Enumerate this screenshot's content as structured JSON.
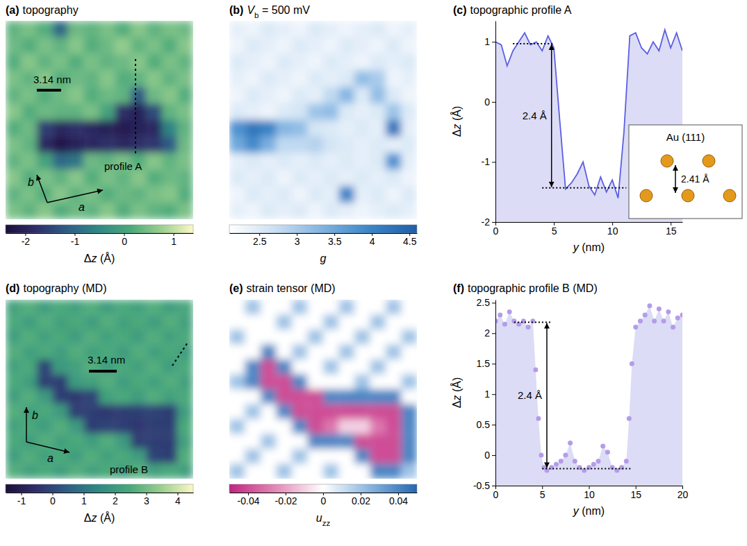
{
  "chart_data": [
    {
      "type": "heatmap",
      "label": "(a)",
      "title": "topography",
      "z": [
        [
          0.3,
          0.5,
          0.2,
          -1.0,
          0.4,
          0.3,
          0.5,
          0.2,
          0.6,
          0.3,
          0.5,
          0.4
        ],
        [
          0.4,
          0.2,
          0.5,
          0.3,
          0.6,
          0.2,
          0.4,
          0.7,
          0.3,
          0.5,
          0.2,
          0.6
        ],
        [
          0.2,
          0.6,
          0.3,
          0.5,
          0.2,
          0.5,
          0.3,
          0.4,
          0.6,
          0.2,
          0.5,
          0.3
        ],
        [
          0.5,
          0.3,
          0.6,
          0.2,
          0.4,
          0.3,
          0.6,
          0.2,
          0.3,
          0.6,
          0.3,
          0.5
        ],
        [
          0.3,
          0.5,
          0.2,
          0.4,
          0.6,
          0.2,
          0.4,
          0.3,
          -1.2,
          0.4,
          0.6,
          0.2
        ],
        [
          0.6,
          0.2,
          0.4,
          0.3,
          0.3,
          0.5,
          0.0,
          -1.8,
          -2.0,
          -1.4,
          0.3,
          0.5
        ],
        [
          0.2,
          0.4,
          -1.6,
          -1.9,
          -1.8,
          -1.9,
          -2.0,
          -2.1,
          -2.0,
          -1.9,
          -0.6,
          0.3
        ],
        [
          0.5,
          0.3,
          -1.9,
          -2.2,
          -2.0,
          -1.9,
          -1.8,
          -1.9,
          -1.8,
          -1.7,
          -1.2,
          0.4
        ],
        [
          0.3,
          0.5,
          0.0,
          -1.0,
          -0.8,
          0.4,
          0.3,
          0.5,
          0.2,
          0.6,
          0.3,
          0.5
        ],
        [
          0.6,
          0.2,
          0.5,
          0.3,
          0.6,
          0.2,
          0.5,
          0.3,
          0.6,
          0.2,
          0.4,
          0.3
        ],
        [
          0.3,
          0.5,
          0.2,
          0.6,
          0.3,
          0.5,
          0.2,
          0.4,
          0.3,
          0.5,
          0.6,
          0.2
        ],
        [
          0.5,
          0.3,
          0.6,
          0.2,
          0.4,
          0.3,
          0.6,
          0.2,
          0.5,
          0.3,
          0.2,
          0.5
        ]
      ],
      "colors": [
        "#1c0f3a",
        "#2e2f6b",
        "#2e5f86",
        "#2f8a84",
        "#4aa97a",
        "#9cd08f",
        "#fdf8c4"
      ],
      "colorbar_range": [
        -2.4,
        1.4
      ],
      "colorbar_ticks": [
        -2,
        -1,
        0,
        1
      ],
      "colorbar_label": "Δz (Å)",
      "scale_bar": "3.14 nm",
      "profile": "profile A",
      "axes": [
        "a",
        "b"
      ]
    },
    {
      "type": "heatmap",
      "label": "(b)",
      "title": "Vb = 500 mV",
      "z": [
        [
          2.4,
          2.3,
          2.5,
          2.4,
          2.3,
          2.5,
          2.4,
          2.3,
          2.4,
          2.5,
          2.3,
          2.4
        ],
        [
          2.3,
          2.5,
          2.4,
          2.3,
          2.5,
          2.4,
          2.3,
          2.5,
          2.4,
          2.3,
          2.5,
          2.3
        ],
        [
          2.5,
          2.4,
          2.3,
          2.5,
          2.4,
          2.3,
          2.5,
          2.4,
          2.3,
          2.5,
          2.4,
          2.5
        ],
        [
          2.4,
          2.3,
          2.5,
          2.4,
          2.3,
          2.5,
          2.4,
          2.5,
          3.2,
          3.0,
          2.3,
          2.4
        ],
        [
          2.3,
          2.5,
          2.4,
          2.3,
          2.5,
          2.4,
          2.8,
          3.3,
          2.5,
          3.2,
          2.5,
          2.3
        ],
        [
          2.5,
          2.4,
          2.3,
          2.5,
          2.6,
          3.1,
          3.2,
          2.5,
          2.4,
          2.5,
          3.1,
          2.5
        ],
        [
          3.8,
          4.2,
          4.0,
          3.3,
          3.2,
          2.6,
          2.5,
          2.4,
          2.5,
          2.4,
          4.2,
          2.4
        ],
        [
          3.5,
          3.9,
          3.4,
          2.8,
          2.8,
          2.9,
          2.6,
          2.5,
          2.4,
          2.5,
          2.4,
          2.5
        ],
        [
          2.4,
          2.5,
          2.4,
          2.5,
          2.4,
          2.5,
          2.4,
          2.5,
          2.4,
          2.5,
          3.8,
          2.4
        ],
        [
          2.5,
          2.4,
          2.5,
          2.3,
          2.5,
          2.4,
          2.5,
          2.4,
          2.5,
          2.4,
          2.5,
          2.3
        ],
        [
          2.3,
          2.5,
          2.4,
          2.5,
          2.3,
          2.5,
          2.4,
          4.0,
          2.4,
          2.5,
          2.3,
          2.5
        ],
        [
          2.4,
          2.3,
          2.5,
          2.4,
          2.5,
          2.3,
          2.5,
          2.4,
          2.3,
          2.4,
          2.5,
          2.4
        ]
      ],
      "colors": [
        "#ffffff",
        "#c9def3",
        "#7fb2e0",
        "#3a85c8",
        "#1f5fa8"
      ],
      "colorbar_range": [
        2.1,
        4.6
      ],
      "colorbar_ticks": [
        2.5,
        3,
        3.5,
        4,
        4.5
      ],
      "colorbar_label": "g"
    },
    {
      "type": "line",
      "label": "(c)",
      "title": "topographic profile A",
      "x": [
        0,
        0.5,
        1,
        1.5,
        2,
        2.5,
        3,
        3.5,
        4,
        4.5,
        5,
        5.5,
        6,
        6.5,
        7,
        7.5,
        8,
        8.5,
        9,
        9.5,
        10,
        10.5,
        11,
        11.5,
        12,
        12.5,
        13,
        13.5,
        14,
        14.5,
        15,
        15.5,
        16
      ],
      "values": [
        1.0,
        0.95,
        0.6,
        0.85,
        1.0,
        1.15,
        0.95,
        1.0,
        0.85,
        1.1,
        0.9,
        -0.3,
        -1.45,
        -1.35,
        -1.2,
        -1.0,
        -1.4,
        -1.55,
        -1.25,
        -1.5,
        -1.3,
        -1.6,
        -0.5,
        1.1,
        1.15,
        0.9,
        0.8,
        1.0,
        0.85,
        1.2,
        0.9,
        1.15,
        0.85
      ],
      "color": "#5b5fe0",
      "xlim": [
        0,
        16
      ],
      "xticks": [
        0,
        5,
        10,
        15
      ],
      "ylim": [
        -2,
        1.35
      ],
      "yticks": [
        -2,
        -1,
        0,
        1
      ],
      "x_label": "y (nm)",
      "y_label": "Δz (Å)",
      "levels": [
        {
          "value": 0.97,
          "x": [
            1.5,
            5
          ]
        },
        {
          "value": -1.43,
          "x": [
            4,
            11.2
          ]
        }
      ],
      "step": {
        "label": "2.4 Å",
        "x": 4.8
      },
      "inset": {
        "title": "Au (111)",
        "label": "2.41 Å"
      }
    },
    {
      "type": "heatmap",
      "label": "(d)",
      "title": "topography (MD)",
      "z": [
        [
          2.2,
          2.6,
          2.1,
          2.5,
          2.2,
          2.6,
          2.1,
          2.5,
          2.2,
          2.6,
          2.1,
          2.4
        ],
        [
          2.5,
          2.1,
          2.6,
          2.2,
          2.5,
          2.1,
          2.6,
          2.2,
          2.5,
          2.1,
          2.6,
          2.2
        ],
        [
          2.1,
          2.6,
          2.2,
          2.5,
          2.1,
          2.6,
          2.2,
          2.5,
          2.1,
          2.6,
          2.2,
          2.5
        ],
        [
          2.6,
          2.2,
          2.5,
          2.1,
          2.6,
          2.2,
          2.5,
          2.1,
          2.6,
          2.2,
          2.5,
          2.1
        ],
        [
          2.2,
          2.5,
          -0.1,
          2.0,
          2.2,
          2.6,
          2.1,
          2.5,
          2.2,
          2.6,
          2.1,
          2.5
        ],
        [
          2.5,
          2.1,
          -0.2,
          -0.2,
          2.0,
          2.2,
          2.6,
          2.1,
          2.5,
          2.2,
          2.6,
          2.2
        ],
        [
          2.1,
          2.6,
          2.0,
          -0.2,
          -0.3,
          -0.1,
          2.2,
          2.5,
          2.1,
          2.6,
          2.2,
          2.5
        ],
        [
          2.6,
          2.2,
          2.5,
          2.0,
          -0.2,
          -0.2,
          -0.3,
          -0.2,
          -0.2,
          -0.1,
          -0.2,
          2.1
        ],
        [
          2.2,
          2.5,
          2.1,
          2.6,
          2.0,
          -0.2,
          -0.1,
          -0.2,
          -0.3,
          -0.2,
          -0.2,
          2.5
        ],
        [
          2.5,
          2.1,
          2.6,
          2.2,
          2.5,
          2.1,
          2.6,
          2.0,
          -0.2,
          -0.2,
          -0.2,
          2.2
        ],
        [
          2.1,
          2.6,
          2.2,
          2.5,
          2.1,
          2.6,
          2.2,
          2.5,
          2.1,
          -0.1,
          -0.2,
          2.6
        ],
        [
          2.6,
          2.2,
          2.5,
          2.1,
          2.6,
          2.2,
          2.5,
          2.1,
          2.6,
          2.2,
          2.5,
          2.1
        ]
      ],
      "colors": [
        "#1c0f3a",
        "#2e2f6b",
        "#2e5f86",
        "#2f8a84",
        "#4aa97a",
        "#9cd08f",
        "#fdf8c4"
      ],
      "colorbar_range": [
        -1.5,
        4.5
      ],
      "colorbar_ticks": [
        -1,
        0,
        1,
        2,
        3,
        4
      ],
      "colorbar_label": "Δz (Å)",
      "scale_bar": "3.14 nm",
      "profile": "profile B",
      "axes": [
        "a",
        "b"
      ]
    },
    {
      "type": "heatmap",
      "label": "(e)",
      "title": "strain tensor (MD)",
      "z": [
        [
          0,
          0.02,
          0,
          0,
          0.02,
          0,
          0,
          0.02,
          0,
          0,
          0.02,
          0
        ],
        [
          0,
          0,
          0,
          0.02,
          0,
          0,
          0.02,
          0,
          0,
          0.02,
          0,
          0
        ],
        [
          0.02,
          0,
          0,
          0,
          0,
          0.02,
          0,
          0,
          0.02,
          0,
          0,
          0.02
        ],
        [
          0,
          0,
          0.04,
          0,
          0.02,
          0,
          0,
          0.02,
          0,
          0,
          0.02,
          0
        ],
        [
          0,
          0.04,
          -0.04,
          0.04,
          0,
          0,
          0.02,
          0,
          0,
          0.02,
          0,
          0
        ],
        [
          0.02,
          0.04,
          -0.04,
          -0.04,
          0.04,
          0,
          0,
          0,
          0.02,
          0,
          0,
          0.02
        ],
        [
          0,
          0,
          0.04,
          -0.04,
          -0.04,
          -0.04,
          0.04,
          0.04,
          0.04,
          0.04,
          0.04,
          0
        ],
        [
          0,
          0.02,
          0,
          0.04,
          -0.04,
          -0.04,
          -0.04,
          -0.04,
          -0.04,
          -0.04,
          -0.04,
          0.04
        ],
        [
          0.02,
          0,
          0,
          0,
          0.04,
          -0.04,
          -0.03,
          -0.01,
          -0.01,
          -0.03,
          -0.04,
          0.04
        ],
        [
          0,
          0,
          0.02,
          0,
          0,
          0.04,
          0.04,
          0.04,
          -0.04,
          -0.04,
          -0.04,
          0.04
        ],
        [
          0,
          0.02,
          0,
          0,
          0.02,
          0,
          0,
          0,
          0.04,
          -0.04,
          -0.04,
          0.04
        ],
        [
          0.02,
          0,
          0,
          0.02,
          0,
          0,
          0.02,
          0,
          0,
          0.04,
          0.04,
          0.02
        ]
      ],
      "colors": [
        "#c0247f",
        "#e48ab8",
        "#ffffff",
        "#86b4e0",
        "#2467b3"
      ],
      "colorbar_range": [
        -0.05,
        0.05
      ],
      "colorbar_ticks": [
        -0.04,
        -0.02,
        0,
        0.02,
        0.04
      ],
      "colorbar_label": "uzz"
    },
    {
      "type": "scatter",
      "label": "(f)",
      "title": "topographic profile B (MD)",
      "x": [
        0,
        0.5,
        1,
        1.5,
        2,
        2.5,
        3,
        3.5,
        4,
        4.3,
        4.6,
        4.9,
        5.2,
        5.5,
        6,
        6.5,
        7,
        7.5,
        8,
        8.5,
        9,
        9.5,
        10,
        10.5,
        11,
        11.5,
        12,
        12.5,
        13,
        13.5,
        14,
        14.3,
        14.6,
        15,
        15.5,
        16,
        16.5,
        17,
        17.5,
        18,
        18.5,
        19,
        19.5,
        20
      ],
      "values": [
        2.2,
        2.3,
        2.15,
        2.35,
        2.2,
        2.15,
        2.2,
        2.1,
        2.2,
        1.4,
        0.6,
        0.0,
        -0.2,
        -0.25,
        -0.2,
        -0.15,
        -0.1,
        0.0,
        0.2,
        -0.1,
        -0.2,
        -0.25,
        -0.2,
        -0.15,
        -0.1,
        0.15,
        0.05,
        -0.2,
        -0.25,
        -0.2,
        -0.1,
        0.6,
        1.5,
        2.1,
        2.2,
        2.3,
        2.45,
        2.2,
        2.4,
        2.2,
        2.35,
        2.1,
        2.25,
        2.3
      ],
      "color": "#b49ce8",
      "xlim": [
        0,
        20
      ],
      "xticks": [
        0,
        5,
        10,
        15,
        20
      ],
      "ylim": [
        -0.5,
        2.55
      ],
      "yticks": [
        -0.5,
        0,
        0.5,
        1,
        1.5,
        2,
        2.5
      ],
      "x_label": "y (nm)",
      "y_label": "Δz (Å)",
      "levels": [
        {
          "value": 2.18,
          "x": [
            2,
            6
          ]
        },
        {
          "value": -0.22,
          "x": [
            5,
            14.5
          ]
        }
      ],
      "step": {
        "label": "2.4 Å",
        "x": 5.5
      }
    }
  ]
}
